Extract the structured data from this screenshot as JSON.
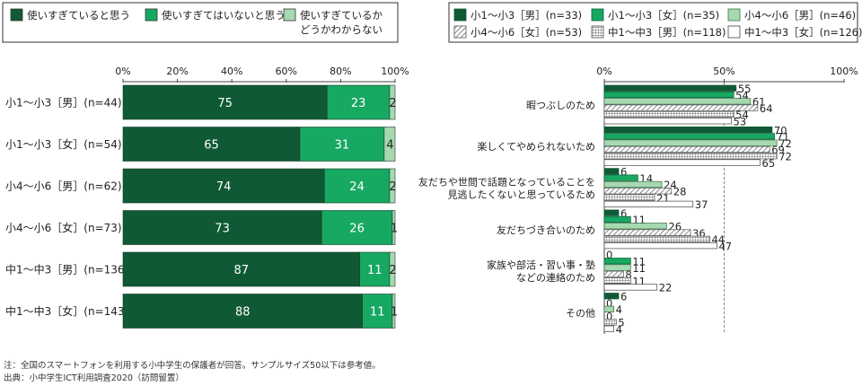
{
  "chart_data": [
    {
      "type": "bar",
      "orientation": "horizontal",
      "stacked": true,
      "title": "",
      "xlim": [
        0,
        100
      ],
      "ticks": [
        "0%",
        "20%",
        "40%",
        "60%",
        "80%",
        "100%"
      ],
      "categories": [
        "小1～小3［男］(n=44)",
        "小1～小3［女］(n=54)",
        "小4～小6［男］(n=62)",
        "小4～小6［女］(n=73)",
        "中1～中3［男］(n=136)",
        "中1～中3［女］(n=143)"
      ],
      "series": [
        {
          "name": "使いすぎていると思う",
          "color": "#0f5a35",
          "values": [
            75,
            65,
            74,
            73,
            87,
            88
          ]
        },
        {
          "name": "使いすぎてはいないと思う",
          "color": "#17a862",
          "values": [
            23,
            31,
            24,
            26,
            11,
            11
          ]
        },
        {
          "name_lines": [
            "使いすぎているか",
            "どうかわからない"
          ],
          "color": "#a6d9b0",
          "values": [
            2,
            4,
            2,
            1,
            2,
            1
          ]
        }
      ],
      "legend_position": "top"
    },
    {
      "type": "bar",
      "orientation": "horizontal",
      "title": "",
      "xlim": [
        0,
        100
      ],
      "ticks": [
        "0%",
        "50%",
        "100%"
      ],
      "reference_line": 50,
      "categories": [
        {
          "lines": [
            "暇つぶしのため"
          ]
        },
        {
          "lines": [
            "楽しくてやめられないため"
          ]
        },
        {
          "lines": [
            "友だちや世間で話題となっていることを",
            "見逃したくないと思っているため"
          ]
        },
        {
          "lines": [
            "友だちづき合いのため"
          ]
        },
        {
          "lines": [
            "家族や部活・習い事・塾",
            "などの連絡のため"
          ]
        },
        {
          "lines": [
            "その他"
          ]
        }
      ],
      "series": [
        {
          "name": "小1～小3［男］(n=33)",
          "pattern": "solid-dark",
          "values": [
            55,
            70,
            6,
            6,
            0,
            6
          ]
        },
        {
          "name": "小1～小3［女］(n=35)",
          "pattern": "solid-mid",
          "values": [
            54,
            71,
            14,
            11,
            11,
            0
          ]
        },
        {
          "name": "小4～小6［男］(n=46)",
          "pattern": "solid-light",
          "values": [
            61,
            72,
            24,
            26,
            11,
            4
          ]
        },
        {
          "name": "小4～小6［女］(n=53)",
          "pattern": "diagonal",
          "values": [
            64,
            69,
            28,
            36,
            8,
            0
          ]
        },
        {
          "name": "中1～中3［男］(n=118)",
          "pattern": "grid",
          "values": [
            54,
            72,
            21,
            44,
            11,
            5
          ]
        },
        {
          "name": "中1～中3［女］(n=126)",
          "pattern": "outline",
          "values": [
            53,
            65,
            37,
            47,
            22,
            4
          ]
        }
      ],
      "legend_position": "top"
    }
  ],
  "footnotes": [
    "注：全国のスマートフォンを利用する小中学生の保護者が回答。サンプルサイズ50以下は参考値。",
    "出典：小中学生ICT利用調査2020（訪問留置）"
  ]
}
